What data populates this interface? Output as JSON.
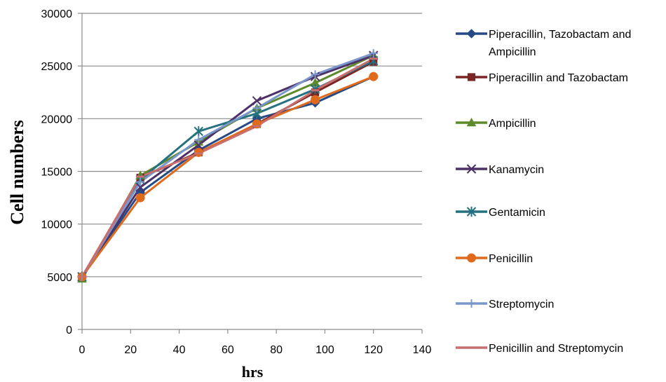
{
  "chart_data": {
    "type": "line",
    "title": "",
    "xlabel": "hrs",
    "ylabel": "Cell numbers",
    "xlim": [
      0,
      140
    ],
    "ylim": [
      0,
      30000
    ],
    "x_ticks": [
      "0",
      "20",
      "40",
      "60",
      "80",
      "100",
      "120",
      "140"
    ],
    "y_ticks": [
      "0",
      "5000",
      "10000",
      "15000",
      "20000",
      "25000",
      "30000"
    ],
    "grid": "horizontal",
    "legend_position": "right",
    "x": [
      0,
      24,
      48,
      72,
      96,
      120
    ],
    "series": [
      {
        "name": "Piperacillin,  Tazobactam and Ampicillin",
        "legend_lines": [
          "Piperacillin,  Tazobactam and",
          "Ampicillin"
        ],
        "color": "#254A86",
        "marker": "diamond",
        "values": [
          5000,
          13000,
          17000,
          20000,
          21500,
          24000
        ]
      },
      {
        "name": "Piperacillin and Tazobactam",
        "legend_lines": [
          "Piperacillin and Tazobactam"
        ],
        "color": "#7B2525",
        "marker": "square",
        "values": [
          5000,
          14400,
          16800,
          19500,
          22500,
          25400
        ]
      },
      {
        "name": "Ampicillin",
        "legend_lines": [
          "Ampicillin"
        ],
        "color": "#5F8A2C",
        "marker": "triangle",
        "values": [
          4800,
          14600,
          17800,
          21000,
          23400,
          26000
        ]
      },
      {
        "name": "Kanamycin",
        "legend_lines": [
          "Kanamycin"
        ],
        "color": "#4D3166",
        "marker": "x",
        "values": [
          5000,
          13500,
          17500,
          21700,
          24000,
          26000
        ]
      },
      {
        "name": "Gentamicin",
        "legend_lines": [
          "Gentamicin"
        ],
        "color": "#24717F",
        "marker": "star",
        "values": [
          5000,
          14200,
          18800,
          20500,
          22800,
          25500
        ]
      },
      {
        "name": "Penicillin",
        "legend_lines": [
          "Penicillin"
        ],
        "color": "#E06A1C",
        "marker": "circle",
        "values": [
          5000,
          12500,
          16800,
          19500,
          21800,
          24000
        ]
      },
      {
        "name": "Streptomycin",
        "legend_lines": [
          "Streptomycin"
        ],
        "color": "#7A97CC",
        "marker": "plus",
        "values": [
          5000,
          14000,
          18000,
          21000,
          24200,
          26200
        ]
      },
      {
        "name": "Penicillin and Streptomycin",
        "legend_lines": [
          "Penicillin and Streptomycin"
        ],
        "color": "#C86E6E",
        "marker": "dash",
        "values": [
          5000,
          14500,
          16700,
          19300,
          22700,
          25700
        ]
      }
    ]
  }
}
